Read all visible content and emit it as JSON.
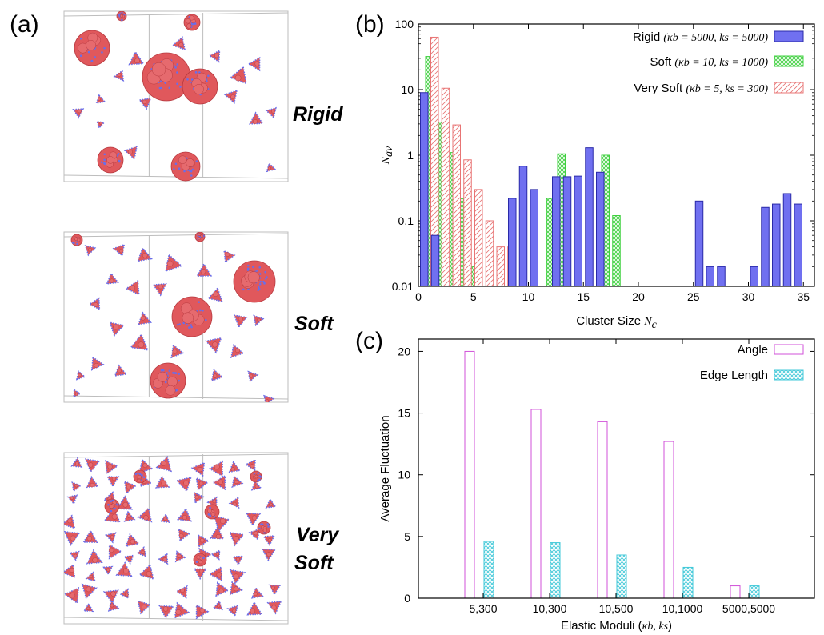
{
  "panel_labels": {
    "a": "(a)",
    "b": "(b)",
    "c": "(c)"
  },
  "snapshots": [
    {
      "label_lines": [
        "Rigid"
      ]
    },
    {
      "label_lines": [
        "Soft"
      ]
    },
    {
      "label_lines": [
        "Very",
        "Soft"
      ]
    }
  ],
  "colors": {
    "particle": "#e0585c",
    "particle_edge": "#b83a40",
    "bead": "#6a6ee8",
    "box": "#bdbdbd",
    "rigid_fill": "#7070f0",
    "rigid_edge": "#2a2aa8",
    "soft_hatch": "#3fd03f",
    "very_soft_hatch": "#e87474",
    "angle": "#d050d8",
    "edge_length": "#40c8d8"
  },
  "chart_data": [
    {
      "panel": "(b)",
      "type": "bar",
      "log_y": true,
      "ylim": [
        0.01,
        100
      ],
      "xlim": [
        0,
        36
      ],
      "x_ticks": [
        0,
        5,
        10,
        15,
        20,
        25,
        30,
        35
      ],
      "y_ticks": [
        0.01,
        0.1,
        1,
        10,
        100
      ],
      "y_tick_labels": [
        "0.01",
        "0.1",
        "1",
        "10",
        "100"
      ],
      "xlabel_text": "Cluster Size ",
      "xlabel_math": "N",
      "xlabel_sub": "c",
      "ylabel_math": "N",
      "ylabel_sub": "av",
      "legend_placement": "top-right",
      "series": [
        {
          "name": "Rigid",
          "legend_rest": "(κb = 5000, ks = 5000)",
          "style": "solid",
          "x": [
            1,
            2,
            9,
            10,
            11,
            13,
            14,
            15,
            16,
            17,
            26,
            27,
            28,
            31,
            32,
            33,
            34,
            35
          ],
          "values": [
            9,
            0.06,
            0.22,
            0.68,
            0.3,
            0.47,
            0.47,
            0.48,
            1.3,
            0.55,
            0.2,
            0.02,
            0.02,
            0.02,
            0.16,
            0.18,
            0.26,
            0.18
          ]
        },
        {
          "name": "Soft",
          "legend_rest": "(κb = 10, ks = 1000)",
          "style": "crosshatch",
          "x": [
            1,
            2,
            3,
            4,
            5,
            12,
            13,
            17,
            18
          ],
          "values": [
            32,
            3.2,
            1.1,
            0.22,
            0.02,
            0.22,
            1.05,
            1.0,
            0.12
          ]
        },
        {
          "name": "Very Soft",
          "legend_rest": "(κb = 5, ks = 300)",
          "style": "hatch",
          "x": [
            1,
            2,
            3,
            4,
            5,
            6,
            7,
            8
          ],
          "values": [
            63,
            10.5,
            2.9,
            0.85,
            0.3,
            0.1,
            0.04,
            0.04
          ]
        }
      ]
    },
    {
      "panel": "(c)",
      "type": "bar",
      "categories": [
        "5,300",
        "10,300",
        "10,500",
        "10,1000",
        "5000,5000"
      ],
      "ylim": [
        0,
        21
      ],
      "y_ticks": [
        0,
        5,
        10,
        15,
        20
      ],
      "ylabel": "Average Fluctuation",
      "xlabel_text": "Elastic Moduli (",
      "xlabel_math": "κb, ks",
      "xlabel_close": ")",
      "legend_placement": "top-right",
      "series": [
        {
          "name": "Angle",
          "values": [
            20.0,
            15.3,
            14.3,
            12.7,
            1.0
          ]
        },
        {
          "name": "Edge Length",
          "values": [
            4.6,
            4.5,
            3.5,
            2.5,
            1.0
          ]
        }
      ]
    }
  ]
}
